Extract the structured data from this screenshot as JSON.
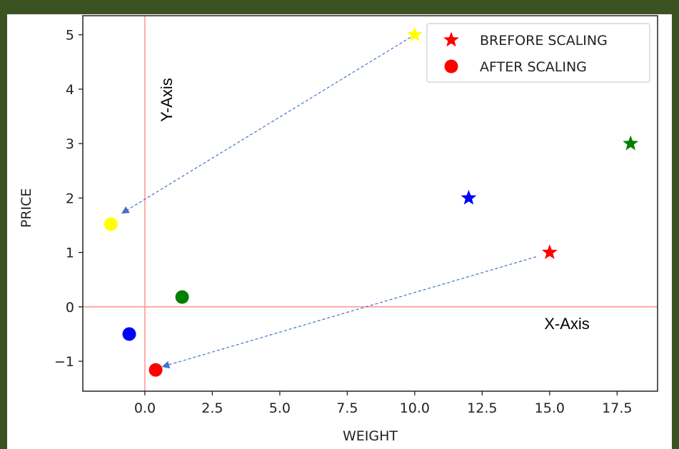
{
  "chart_data": {
    "type": "scatter",
    "xlabel": "WEIGHT",
    "ylabel": "PRICE",
    "xlim": [
      -2.3,
      19.0
    ],
    "ylim": [
      -1.55,
      5.35
    ],
    "xticks": [
      0.0,
      2.5,
      5.0,
      7.5,
      10.0,
      12.5,
      15.0,
      17.5
    ],
    "xtick_labels": [
      "0.0",
      "2.5",
      "5.0",
      "7.5",
      "10.0",
      "12.5",
      "15.0",
      "17.5"
    ],
    "yticks": [
      -1,
      0,
      1,
      2,
      3,
      4,
      5
    ],
    "ytick_labels": [
      "−1",
      "0",
      "1",
      "2",
      "3",
      "4",
      "5"
    ],
    "grid": false,
    "legend_position": "top-right",
    "series": [
      {
        "name": "BREFORE SCALING",
        "marker": "star",
        "points": [
          {
            "x": 15,
            "y": 1,
            "color": "#ff0000"
          },
          {
            "x": 12,
            "y": 2,
            "color": "#0000ff"
          },
          {
            "x": 18,
            "y": 3,
            "color": "#008000"
          },
          {
            "x": 10,
            "y": 5,
            "color": "#ffff00"
          }
        ]
      },
      {
        "name": "AFTER SCALING",
        "marker": "circle",
        "points": [
          {
            "x": 0.4,
            "y": -1.16,
            "color": "#ff0000"
          },
          {
            "x": -0.58,
            "y": -0.5,
            "color": "#0000ff"
          },
          {
            "x": 1.38,
            "y": 0.18,
            "color": "#008000"
          },
          {
            "x": -1.26,
            "y": 1.52,
            "color": "#ffff00"
          }
        ]
      }
    ],
    "reference_lines": {
      "vertical_x": 0,
      "horizontal_y": 0,
      "color": "#ff9999"
    },
    "annotations": {
      "y_axis_label": "Y-Axis",
      "x_axis_label": "X-Axis"
    },
    "arrows": [
      {
        "from": [
          10,
          5
        ],
        "to": [
          -0.85,
          1.72
        ]
      },
      {
        "from": [
          14.5,
          0.92
        ],
        "to": [
          0.65,
          -1.1
        ]
      }
    ],
    "arrow_color": "#4472c4"
  }
}
